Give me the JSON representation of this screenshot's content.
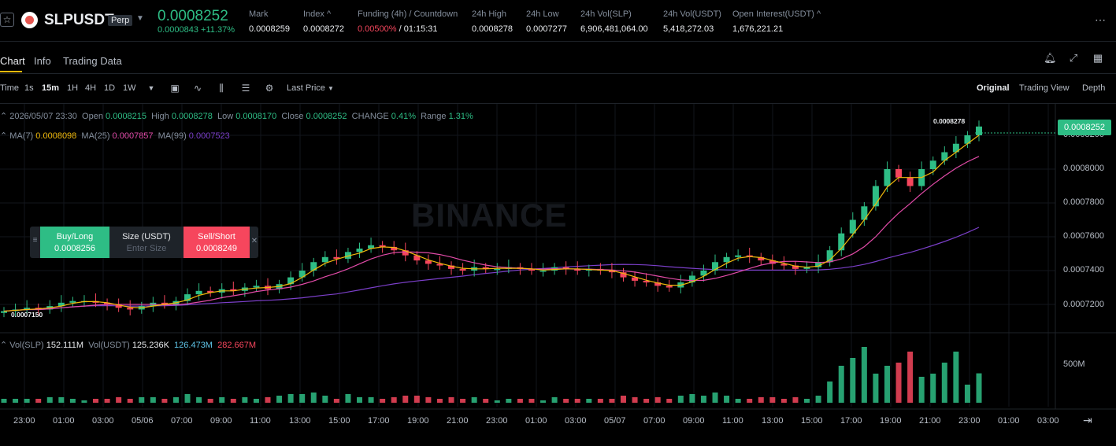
{
  "header": {
    "symbol": "SLPUSDT",
    "badge": "Perp",
    "last_price": "0.0008252",
    "change": "0.0000843 +11.37%",
    "stats": [
      {
        "label": "Mark",
        "value": "0.0008259"
      },
      {
        "label": "Index ^",
        "value": "0.0008272"
      },
      {
        "label": "Funding (4h) / Countdown",
        "value_red": "0.00500%",
        "value": "/ 01:15:31"
      },
      {
        "label": "24h High",
        "value": "0.0008278"
      },
      {
        "label": "24h Low",
        "value": "0.0007277"
      },
      {
        "label": "24h Vol(SLP)",
        "value": "6,906,481,064.00"
      },
      {
        "label": "24h Vol(USDT)",
        "value": "5,418,272.03"
      },
      {
        "label": "Open Interest(USDT) ^",
        "value": "1,676,221.21"
      }
    ],
    "more": "⋯"
  },
  "tabs": [
    "Chart",
    "Info",
    "Trading Data"
  ],
  "toolbar": {
    "intervals": [
      "Time",
      "1s",
      "15m",
      "1H",
      "4H",
      "1D",
      "1W"
    ],
    "active_interval": "15m",
    "price_type": "Last Price",
    "views": [
      "Original",
      "Trading View",
      "Depth"
    ],
    "active_view": "Original"
  },
  "legend": {
    "date": "2026/05/07 23:30",
    "open_label": "Open",
    "open": "0.0008215",
    "high_label": "High",
    "high": "0.0008278",
    "low_label": "Low",
    "low": "0.0008170",
    "close_label": "Close",
    "close": "0.0008252",
    "change_label": "CHANGE",
    "change": "0.41%",
    "range_label": "Range",
    "range": "1.31%",
    "ma7_label": "MA(7)",
    "ma7": "0.0008098",
    "ma25_label": "MA(25)",
    "ma25": "0.0007857",
    "ma99_label": "MA(99)",
    "ma99": "0.0007523",
    "vol_label": "Vol(SLP)",
    "vol": "152.111M",
    "volusdt_label": "Vol(USDT)",
    "volusdt": "125.236K",
    "vol_ma1": "126.473M",
    "vol_ma2": "282.667M"
  },
  "price_axis": [
    "0.0008200",
    "0.0008000",
    "0.0007800",
    "0.0007600",
    "0.0007400",
    "0.0007200"
  ],
  "current_price_tag": "0.0008252",
  "high_marker": "0.0008278",
  "low_marker": "0.0007150",
  "volume_axis": [
    "500M"
  ],
  "time_axis": [
    "23:00",
    "01:00",
    "03:00",
    "05/06",
    "07:00",
    "09:00",
    "11:00",
    "13:00",
    "15:00",
    "17:00",
    "19:00",
    "21:00",
    "23:00",
    "01:00",
    "03:00",
    "05/07",
    "07:00",
    "09:00",
    "11:00",
    "13:00",
    "15:00",
    "17:00",
    "19:00",
    "21:00",
    "23:00",
    "01:00",
    "03:00"
  ],
  "watermark": "BINANCE",
  "trade_widget": {
    "buy_label": "Buy/Long",
    "buy_price": "0.0008256",
    "size_label": "Size (USDT)",
    "size_placeholder": "Enter Size",
    "sell_label": "Sell/Short",
    "sell_price": "0.0008249"
  },
  "colors": {
    "up": "#2ebd85",
    "down": "#f6465d",
    "ma7": "#f0b90b",
    "ma25": "#e24ba8",
    "ma99": "#7b3fc9",
    "vol_ma1": "#5fc5e8"
  },
  "chart_data": {
    "type": "candlestick",
    "interval": "15m",
    "closes": [
      0.000716,
      0.000717,
      0.000718,
      0.000717,
      0.000719,
      0.000721,
      0.000722,
      0.000722,
      0.000721,
      0.00072,
      0.000718,
      0.000717,
      0.000719,
      0.000721,
      0.00072,
      0.000722,
      0.000726,
      0.000728,
      0.000727,
      0.000729,
      0.000728,
      0.00073,
      0.000731,
      0.000729,
      0.000732,
      0.000736,
      0.00074,
      0.000745,
      0.000748,
      0.000747,
      0.000751,
      0.000753,
      0.000755,
      0.000754,
      0.000752,
      0.000749,
      0.000746,
      0.000744,
      0.000743,
      0.000741,
      0.00074,
      0.000742,
      0.000741,
      0.000741,
      0.000742,
      0.000741,
      0.00074,
      0.00074,
      0.000742,
      0.000741,
      0.00074,
      0.000741,
      0.00074,
      0.000739,
      0.000736,
      0.000734,
      0.000733,
      0.000731,
      0.00073,
      0.000733,
      0.000737,
      0.00074,
      0.000745,
      0.000748,
      0.000749,
      0.000748,
      0.000746,
      0.000744,
      0.000743,
      0.000741,
      0.000742,
      0.000745,
      0.000752,
      0.000762,
      0.00077,
      0.000778,
      0.00079,
      0.0008,
      0.000795,
      0.00079,
      0.0008,
      0.000805,
      0.00081,
      0.000815,
      0.00082,
      0.0008252
    ],
    "ma7": "0.0008098",
    "ma25": "0.0007857",
    "ma99": "0.0007523"
  }
}
